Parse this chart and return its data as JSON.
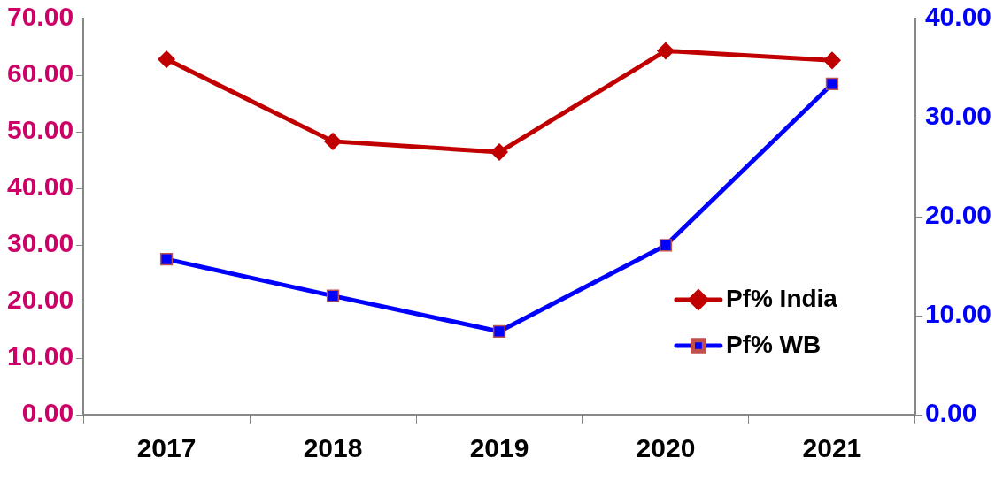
{
  "chart_data": {
    "type": "line",
    "categories": [
      "2017",
      "2018",
      "2019",
      "2020",
      "2021"
    ],
    "series": [
      {
        "name": "Pf% India",
        "color": "#c00000",
        "marker": "diamond",
        "values": [
          62.8,
          48.3,
          46.4,
          64.3,
          62.6
        ]
      },
      {
        "name": "Pf% WB",
        "color": "#0000ff",
        "marker": "square",
        "axis": "y2",
        "values": [
          15.7,
          12.0,
          8.4,
          17.1,
          33.4
        ]
      }
    ],
    "ylim": [
      0,
      70
    ],
    "yticks": [
      {
        "value": 0,
        "label": "0.00"
      },
      {
        "value": 10,
        "label": "10.00"
      },
      {
        "value": 20,
        "label": "20.00"
      },
      {
        "value": 30,
        "label": "30.00"
      },
      {
        "value": 40,
        "label": "40.00"
      },
      {
        "value": 50,
        "label": "50.00"
      },
      {
        "value": 60,
        "label": "60.00"
      },
      {
        "value": 70,
        "label": "70.00"
      }
    ],
    "y2lim": [
      0,
      40
    ],
    "y2ticks": [
      {
        "value": 0,
        "label": "0.00"
      },
      {
        "value": 10,
        "label": "10.00"
      },
      {
        "value": 20,
        "label": "20.00"
      },
      {
        "value": 30,
        "label": "30.00"
      },
      {
        "value": 40,
        "label": "40.00"
      }
    ],
    "grid": false,
    "legend": "bottom right",
    "line_style": "solid"
  }
}
